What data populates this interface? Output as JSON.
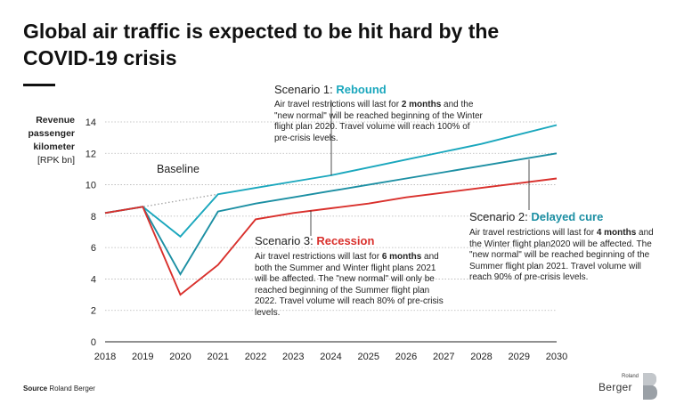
{
  "title": "Global air traffic is expected to be hit hard by the COVID-19 crisis",
  "y_axis_label": {
    "line1": "Revenue",
    "line2": "passenger",
    "line3": "kilometer",
    "unit": "[RPK bn]"
  },
  "source": {
    "label": "Source",
    "text": "Roland Berger"
  },
  "logo": {
    "small": "Roland",
    "big": "Berger"
  },
  "colors": {
    "rebound": "#1aa7bd",
    "delayed": "#1c8fa3",
    "recession": "#d9302c",
    "baseline": "#a9a9a9",
    "text": "#1a1a1a"
  },
  "annotations": {
    "baseline": "Baseline",
    "rebound": {
      "prefix": "Scenario 1: ",
      "name": "Rebound",
      "t1": "Air travel restrictions will last for ",
      "b1": "2 months",
      "t2": " and the \"new normal\" will be reached beginning of the Winter flight plan 2020. Travel volume will reach 100% of pre-crisis levels."
    },
    "delayed": {
      "prefix": "Scenario 2: ",
      "name": "Delayed cure",
      "t1": "Air travel restrictions will last for ",
      "b1": "4 months",
      "t2": " and the Winter flight plan2020 will be affected. The \"new normal\" will be reached beginning of the Summer flight plan 2021. Travel volume will reach 90% of pre-crisis levels."
    },
    "recession": {
      "prefix": "Scenario 3: ",
      "name": "Recession",
      "t1": "Air travel restrictions will last for ",
      "b1": "6 months",
      "t2": " and both the Summer and Winter flight plans 2021 will be affected. The \"new normal\" will only be reached beginning of the Summer flight plan 2022. Travel volume will reach 80% of pre-crisis levels."
    }
  },
  "chart_data": {
    "type": "line",
    "x_ticks": [
      2018,
      2019,
      2020,
      2021,
      2022,
      2023,
      2024,
      2025,
      2026,
      2027,
      2028,
      2029,
      2030
    ],
    "y_ticks": [
      0,
      2,
      4,
      6,
      8,
      10,
      12,
      14
    ],
    "xlim": [
      2018,
      2030
    ],
    "ylim": [
      0,
      14
    ],
    "grid": "horizontal dotted",
    "series": [
      {
        "name": "Baseline",
        "key": "baseline",
        "style": "dotted",
        "x": [
          2018,
          2019,
          2020,
          2021
        ],
        "y": [
          8.2,
          8.6,
          9.0,
          9.4
        ]
      },
      {
        "name": "Rebound",
        "key": "rebound",
        "x": [
          2018,
          2019,
          2020,
          2021,
          2022,
          2023,
          2024,
          2025,
          2026,
          2027,
          2028,
          2029,
          2030
        ],
        "y": [
          8.2,
          8.6,
          6.7,
          9.4,
          9.8,
          10.2,
          10.6,
          11.1,
          11.6,
          12.1,
          12.6,
          13.2,
          13.8
        ]
      },
      {
        "name": "Delayed cure",
        "key": "delayed",
        "x": [
          2018,
          2019,
          2020,
          2021,
          2022,
          2023,
          2024,
          2025,
          2026,
          2027,
          2028,
          2029,
          2030
        ],
        "y": [
          8.2,
          8.6,
          4.3,
          8.3,
          8.8,
          9.2,
          9.6,
          10.0,
          10.4,
          10.8,
          11.2,
          11.6,
          12.0
        ]
      },
      {
        "name": "Recession",
        "key": "recession",
        "x": [
          2018,
          2019,
          2020,
          2021,
          2022,
          2023,
          2024,
          2025,
          2026,
          2027,
          2028,
          2029,
          2030
        ],
        "y": [
          8.2,
          8.6,
          3.0,
          4.9,
          7.8,
          8.2,
          8.5,
          8.8,
          9.2,
          9.5,
          9.8,
          10.1,
          10.4
        ]
      }
    ]
  }
}
